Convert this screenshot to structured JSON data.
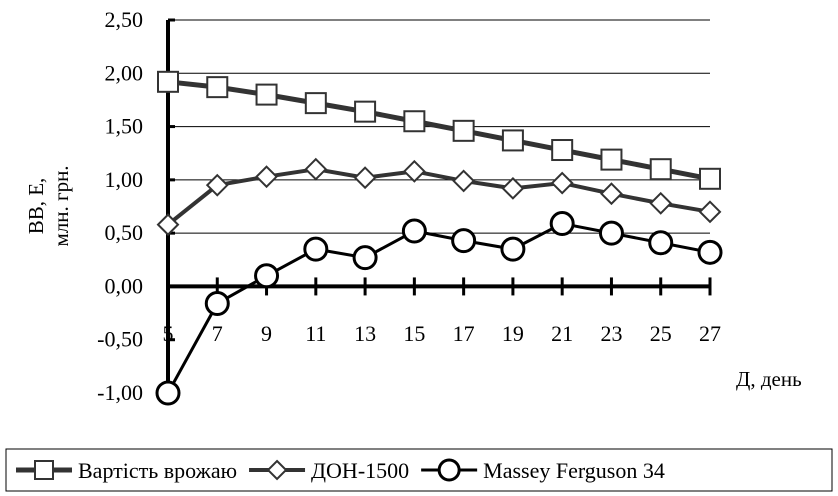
{
  "chart_data": {
    "type": "line",
    "title": "",
    "xlabel": "Д, день",
    "ylabel_lines": [
      "ВВ, Е,",
      "млн. грн."
    ],
    "x": [
      5,
      7,
      9,
      11,
      13,
      15,
      17,
      19,
      21,
      23,
      25,
      27
    ],
    "x_tick_labels": [
      "5",
      "7",
      "9",
      "11",
      "13",
      "15",
      "17",
      "19",
      "21",
      "23",
      "25",
      "27"
    ],
    "y_tick_labels": [
      "2,50",
      "2,00",
      "1,50",
      "1,00",
      "0,50",
      "0,00",
      "-0,50",
      "-1,00"
    ],
    "ylim": [
      -1.0,
      2.5
    ],
    "y_ticks": [
      2.5,
      2.0,
      1.5,
      1.0,
      0.5,
      0.0,
      -0.5,
      -1.0
    ],
    "grid": "horizontal",
    "legend_position": "bottom",
    "series": [
      {
        "name": "Вартість врожаю",
        "marker": "square",
        "values": [
          1.92,
          1.87,
          1.8,
          1.72,
          1.64,
          1.55,
          1.46,
          1.37,
          1.28,
          1.19,
          1.1,
          1.01
        ]
      },
      {
        "name": "ДОН-1500",
        "marker": "diamond",
        "values": [
          0.58,
          0.95,
          1.03,
          1.1,
          1.02,
          1.08,
          0.99,
          0.92,
          0.97,
          0.87,
          0.78,
          0.7
        ]
      },
      {
        "name": "Massey Ferguson 34",
        "marker": "circle",
        "values": [
          -1.0,
          -0.16,
          0.1,
          0.35,
          0.27,
          0.52,
          0.43,
          0.35,
          0.59,
          0.5,
          0.41,
          0.32
        ]
      }
    ],
    "colors": {
      "line": "#333333",
      "axis": "#000000",
      "grid": "#000000"
    }
  }
}
